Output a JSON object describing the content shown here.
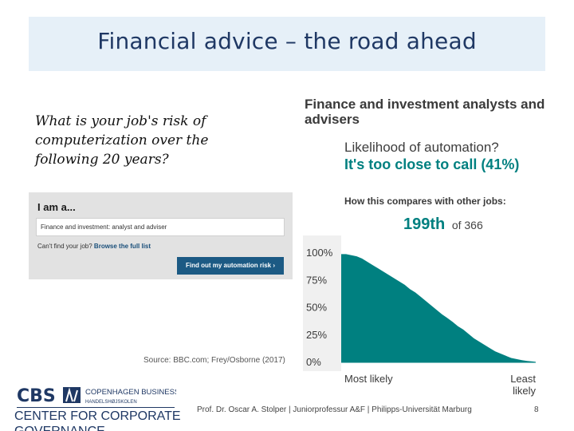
{
  "slide": {
    "title": "Financial advice – the road ahead",
    "question": "What is your job's risk of computerization over the following 20 years?",
    "source": "Source: BBC.com; Frey/Osborne (2017)"
  },
  "widget": {
    "heading": "I am a...",
    "input_value": "Finance and investment: analyst and adviser",
    "help_text": "Can't find your job?",
    "browse_link": "Browse the full list",
    "button_label": "Find out my automation risk ›"
  },
  "result": {
    "occupation": "Finance and investment analysts and advisers",
    "likelihood_label": "Likelihood of automation?",
    "verdict": "It's too close to call (41%)",
    "compare_label": "How this compares with other jobs:",
    "rank": "199th",
    "rank_total": "of 366"
  },
  "colors": {
    "title": "#1f3864",
    "teal": "#008080",
    "title_band": "#e6f0f8"
  },
  "chart_data": {
    "type": "area",
    "title": "",
    "x_start_label": "Most likely",
    "x_end_label": "Least likely",
    "y_ticks": [
      "100%",
      "75%",
      "50%",
      "25%",
      "0%"
    ],
    "ylim": [
      0,
      100
    ],
    "xlim": [
      1,
      366
    ],
    "x": [
      1,
      10,
      20,
      30,
      40,
      50,
      60,
      70,
      80,
      90,
      100,
      110,
      120,
      130,
      140,
      150,
      160,
      170,
      180,
      190,
      199,
      210,
      220,
      230,
      240,
      250,
      260,
      270,
      280,
      290,
      300,
      310,
      320,
      330,
      340,
      350,
      360,
      366
    ],
    "values": [
      99,
      99,
      98,
      97,
      95,
      92,
      89,
      86,
      83,
      80,
      77,
      74,
      71,
      67,
      64,
      60,
      56,
      52,
      48,
      44,
      41,
      37,
      33,
      30,
      26,
      22,
      19,
      16,
      13,
      10,
      8,
      6,
      4,
      3,
      2,
      1.3,
      0.8,
      0.5
    ],
    "highlight": {
      "rank": 199,
      "value": 41
    },
    "colors": {
      "fill": "#008080"
    }
  },
  "footer": {
    "logo_text": "CBS",
    "school_name": "COPENHAGEN BUSINESS SCHOOL",
    "school_subtitle": "HANDELSHØJSKOLEN",
    "center_name": "CENTER FOR CORPORATE",
    "center_name_2": "GOVERNANCE",
    "author": "Prof. Dr. Oscar A. Stolper | Juniorprofessur A&F | Philipps-Universität Marburg",
    "page_number": "8"
  }
}
